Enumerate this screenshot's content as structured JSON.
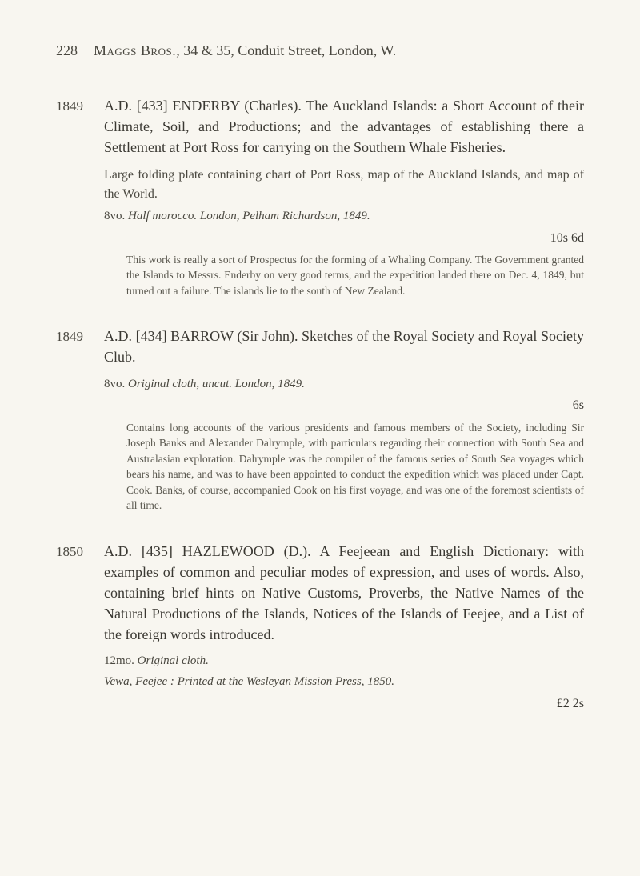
{
  "page": {
    "number": "228",
    "running_head_name": "Maggs Bros.",
    "running_head_rest": ", 34 & 35, Conduit Street, London, W."
  },
  "colors": {
    "background": "#f8f6f0",
    "text_primary": "#3a3832",
    "text_secondary": "#4a4840",
    "text_note": "#5a584f",
    "rule": "#5a584f"
  },
  "typography": {
    "body_fontsize_pt": 13,
    "title_fontsize_pt": 14,
    "note_fontsize_pt": 10,
    "font_family": "Georgia serif"
  },
  "entries": [
    {
      "number": "1849",
      "title": "A.D. [433] ENDERBY (Charles). The Auckland Islands: a Short Account of their Climate, Soil, and Productions; and the advantages of establishing there a Settlement at Port Ross for carrying on the Southern Whale Fisheries.",
      "description": "Large folding plate containing chart of Port Ross, map of the Auckland Islands, and map of the World.",
      "imprint_format": "8vo.",
      "imprint_rest": "Half morocco.   London, Pelham Richardson, 1849.",
      "price": "10s 6d",
      "note": "This work is really a sort of Prospectus for the forming of a Whaling Company. The Government granted the Islands to Messrs. Enderby on very good terms, and the expedition landed there on Dec. 4, 1849, but turned out a failure. The islands lie to the south of New Zealand."
    },
    {
      "number": "1849",
      "title": "A.D. [434] BARROW (Sir John). Sketches of the Royal Society and Royal Society Club.",
      "description": "",
      "imprint_format": "8vo.",
      "imprint_rest": "Original cloth, uncut.   London, 1849.",
      "price": "6s",
      "note": "Contains long accounts of the various presidents and famous members of the Society, including Sir Joseph Banks and Alexander Dalrymple, with particulars regarding their connection with South Sea and Australasian exploration. Dalrymple was the compiler of the famous series of South Sea voyages which bears his name, and was to have been appointed to conduct the expedition which was placed under Capt. Cook. Banks, of course, accompanied Cook on his first voyage, and was one of the foremost scientists of all time."
    },
    {
      "number": "1850",
      "title": "A.D. [435] HAZLEWOOD (D.). A Feejeean and English Dictionary: with examples of common and peculiar modes of expression, and uses of words. Also, containing brief hints on Native Customs, Proverbs, the Native Names of the Natural Productions of the Islands, Notices of the Islands of Feejee, and a List of the foreign words introduced.",
      "description": "",
      "imprint_format": "12mo.",
      "imprint_rest": "Original cloth.",
      "imprint_extra": "Vewa, Feejee : Printed at the Wesleyan Mission Press, 1850.",
      "price": "£2 2s",
      "note": ""
    }
  ]
}
